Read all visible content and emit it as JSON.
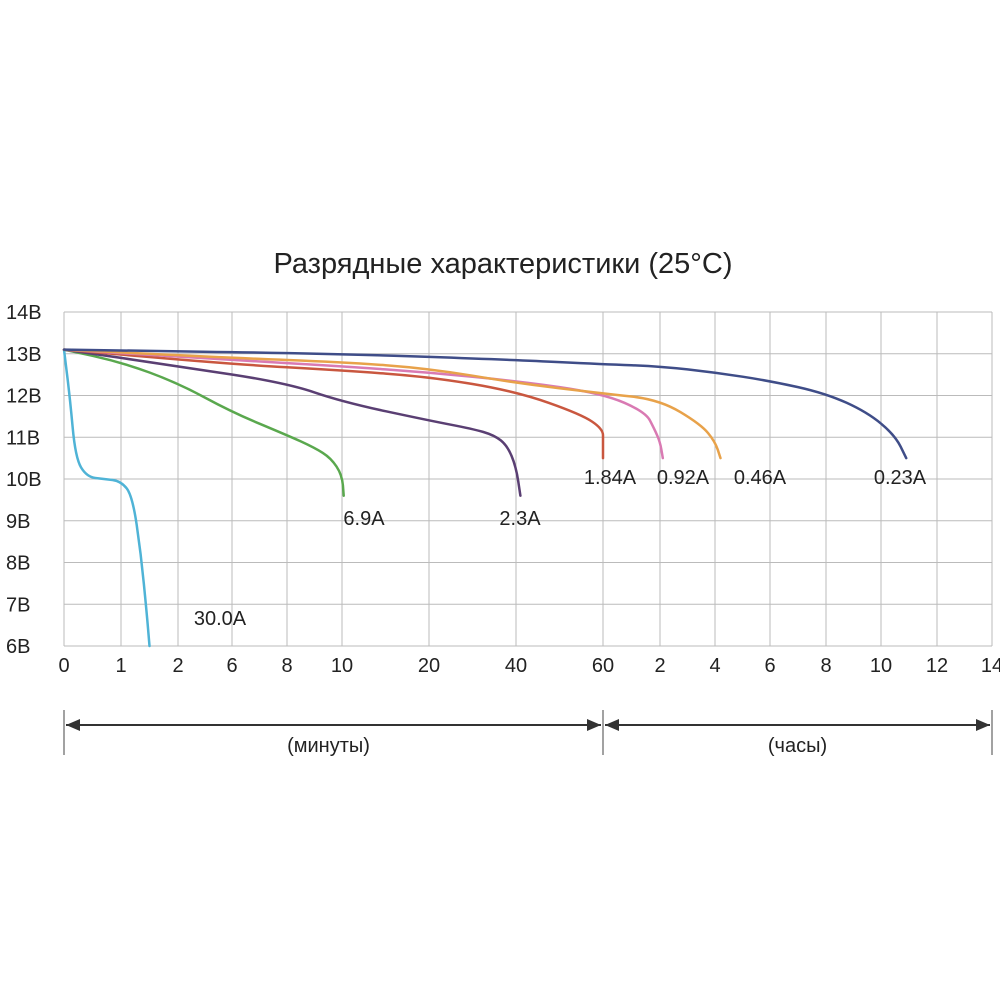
{
  "chart_data": {
    "type": "line",
    "title": "Разрядные характеристики (25°C)",
    "xlabel": "",
    "ylabel": "",
    "y_ticks": [
      "14В",
      "13В",
      "12В",
      "11В",
      "10В",
      "9В",
      "8В",
      "7В",
      "6В"
    ],
    "ylim": [
      6,
      14
    ],
    "x_ticks": [
      "0",
      "1",
      "2",
      "6",
      "8",
      "10",
      "20",
      "40",
      "60",
      "2",
      "4",
      "6",
      "8",
      "10",
      "12",
      "14"
    ],
    "x_ranges": [
      {
        "label": "(минуты)",
        "from_tick": 0,
        "to_tick": 8
      },
      {
        "label": "(часы)",
        "from_tick": 8,
        "to_tick": 15
      }
    ],
    "grid": true,
    "series": [
      {
        "name": "30.0A",
        "color": "#4fb3d6",
        "x": [
          0,
          0.1,
          0.2,
          0.4,
          0.7,
          1.0,
          1.2,
          1.35,
          1.45,
          1.5
        ],
        "y": [
          13.1,
          12.0,
          10.5,
          10.05,
          10.0,
          9.95,
          9.6,
          8.2,
          6.8,
          6.0
        ]
      },
      {
        "name": "6.9A",
        "color": "#5aa84e",
        "x": [
          0,
          1,
          2,
          6,
          8,
          9,
          9.6,
          10,
          10.2
        ],
        "y": [
          13.1,
          12.8,
          12.3,
          11.6,
          11.05,
          10.75,
          10.5,
          10.1,
          9.6
        ]
      },
      {
        "name": "2.3A",
        "color": "#5a3f73",
        "x": [
          0,
          2,
          8,
          10,
          20,
          30,
          35,
          38,
          40,
          41
        ],
        "y": [
          13.1,
          12.7,
          12.3,
          11.85,
          11.4,
          11.2,
          11.05,
          10.8,
          10.3,
          9.6
        ]
      },
      {
        "name": "1.84A",
        "color": "#c9573f",
        "x": [
          0,
          6,
          10,
          20,
          40,
          55,
          60,
          62,
          64
        ],
        "y": [
          13.1,
          12.75,
          12.6,
          12.45,
          12.1,
          11.55,
          11.2,
          10.9,
          10.5
        ]
      },
      {
        "name": "0.92A",
        "color": "#d97ab3",
        "x": [
          0,
          6,
          10,
          20,
          40,
          60,
          1.5,
          1.8,
          2.0,
          2.1
        ],
        "y": [
          13.1,
          12.85,
          12.7,
          12.55,
          12.35,
          12.05,
          11.6,
          11.2,
          10.9,
          10.5
        ]
      },
      {
        "name": "0.46A",
        "color": "#e8a24a",
        "x": [
          0,
          6,
          10,
          20,
          40,
          60,
          2,
          3.5,
          4.0,
          4.2
        ],
        "y": [
          13.1,
          12.9,
          12.8,
          12.65,
          12.3,
          12.05,
          11.9,
          11.3,
          10.9,
          10.5
        ]
      },
      {
        "name": "0.23A",
        "color": "#3f4d88",
        "x": [
          0,
          10,
          40,
          60,
          2,
          4,
          6,
          8,
          9.5,
          10.5,
          10.9
        ],
        "y": [
          13.1,
          13.0,
          12.85,
          12.75,
          12.7,
          12.55,
          12.35,
          12.05,
          11.6,
          11.05,
          10.5
        ]
      }
    ]
  }
}
